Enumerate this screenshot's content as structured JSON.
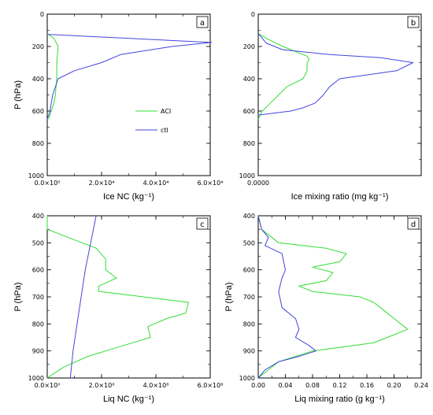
{
  "chart_data": [
    {
      "type": "line",
      "panel": "a",
      "ylabel": "P (hPa)",
      "xlabel": "Ice NC (kg⁻¹)",
      "xlim": [
        0,
        60000
      ],
      "ylim": [
        1000,
        0
      ],
      "xticks": [
        0,
        20000,
        40000,
        60000
      ],
      "xtick_labels": [
        "0.0×10⁰",
        "2.0×10⁴",
        "4.0×10⁴",
        "6.0×10⁴"
      ],
      "yticks": [
        0,
        200,
        400,
        600,
        800,
        1000
      ],
      "ytick_labels": [
        "0",
        "200",
        "400",
        "600",
        "800",
        "1000"
      ],
      "legend": {
        "entries": [
          "ACI",
          "ctl"
        ],
        "placement": "middle-right"
      },
      "series": [
        {
          "name": "ACI",
          "color": "#33dd33",
          "x": [
            0,
            2500,
            4000,
            3500,
            3500,
            3000,
            2500,
            1500,
            500
          ],
          "y": [
            120,
            150,
            200,
            300,
            400,
            500,
            550,
            600,
            650
          ]
        },
        {
          "name": "ctl",
          "color": "#4444dd",
          "x": [
            0,
            60500,
            46000,
            27000,
            20000,
            10000,
            4000,
            2000,
            1000,
            0
          ],
          "y": [
            125,
            175,
            200,
            250,
            300,
            350,
            400,
            500,
            600,
            650
          ]
        }
      ]
    },
    {
      "type": "line",
      "panel": "b",
      "ylabel": "",
      "xlabel": "Ice mixing ratio (mg kg⁻¹)",
      "xlim": [
        0,
        8
      ],
      "ylim": [
        1000,
        0
      ],
      "xticks": [
        0
      ],
      "xtick_labels": [
        "0.0000"
      ],
      "yticks": [
        0,
        200,
        400,
        600,
        800,
        1000
      ],
      "ytick_labels": [
        "0",
        "200",
        "400",
        "600",
        "800",
        "1000"
      ],
      "series": [
        {
          "name": "ACI",
          "color": "#33dd33",
          "x": [
            0,
            0.4,
            1.2,
            2.0,
            2.4,
            2.5,
            2.4,
            2.4,
            2.2,
            1.4,
            1.0,
            0.6,
            0.2,
            0
          ],
          "y": [
            120,
            150,
            200,
            240,
            260,
            280,
            300,
            350,
            400,
            450,
            500,
            550,
            600,
            650
          ]
        },
        {
          "name": "ctl",
          "color": "#4444dd",
          "x": [
            0,
            0.4,
            1.2,
            3.5,
            6.0,
            7.6,
            6.8,
            4.0,
            3.5,
            3.2,
            2.8,
            2.2,
            1.6,
            0
          ],
          "y": [
            120,
            180,
            220,
            250,
            270,
            300,
            350,
            400,
            450,
            500,
            550,
            580,
            600,
            625
          ]
        }
      ]
    },
    {
      "type": "line",
      "panel": "c",
      "ylabel": "P (hPa)",
      "xlabel": "Liq NC (kg⁻¹)",
      "xlim": [
        0,
        600000000
      ],
      "ylim": [
        1000,
        400
      ],
      "xticks": [
        0,
        200000000,
        400000000,
        600000000
      ],
      "xtick_labels": [
        "0.0×10⁰",
        "2.0×10⁸",
        "4.0×10⁸",
        "6.0×10⁸"
      ],
      "yticks": [
        400,
        500,
        600,
        700,
        800,
        900,
        1000
      ],
      "ytick_labels": [
        "400",
        "500",
        "600",
        "700",
        "800",
        "900",
        "1000"
      ],
      "series": [
        {
          "name": "ACI",
          "color": "#33dd33",
          "x": [
            0,
            0,
            180000000,
            215000000,
            215000000,
            255000000,
            190000000,
            190000000,
            520000000,
            510000000,
            440000000,
            370000000,
            380000000,
            280000000,
            150000000,
            60000000,
            30000000,
            0
          ],
          "y": [
            400,
            450,
            520,
            560,
            600,
            630,
            660,
            680,
            720,
            760,
            780,
            810,
            850,
            880,
            920,
            960,
            980,
            1000
          ]
        },
        {
          "name": "ctl",
          "color": "#4444dd",
          "x": [
            180000000,
            160000000,
            140000000,
            125000000,
            110000000,
            95000000,
            85000000
          ],
          "y": [
            400,
            500,
            600,
            700,
            800,
            900,
            1000
          ]
        }
      ]
    },
    {
      "type": "line",
      "panel": "d",
      "ylabel": "P (hPa)",
      "xlabel": "Liq mixing ratio (g kg⁻¹)",
      "xlim": [
        0,
        0.24
      ],
      "ylim": [
        1000,
        400
      ],
      "xticks": [
        0,
        0.04,
        0.08,
        0.12,
        0.16,
        0.2,
        0.24
      ],
      "xtick_labels": [
        "0.00",
        "0.04",
        "0.08",
        "0.12",
        "0.16",
        "0.20",
        "0.24"
      ],
      "yticks": [
        400,
        500,
        600,
        700,
        800,
        900,
        1000
      ],
      "ytick_labels": [
        "400",
        "500",
        "600",
        "700",
        "800",
        "900",
        "1000"
      ],
      "series": [
        {
          "name": "ACI",
          "color": "#33dd33",
          "x": [
            0,
            0.005,
            0.03,
            0.1,
            0.13,
            0.12,
            0.08,
            0.11,
            0.1,
            0.06,
            0.08,
            0.15,
            0.17,
            0.18,
            0.2,
            0.22,
            0.17,
            0.08,
            0.03,
            0.01,
            0
          ],
          "y": [
            400,
            450,
            500,
            520,
            540,
            570,
            590,
            610,
            640,
            660,
            680,
            700,
            720,
            740,
            780,
            820,
            870,
            900,
            940,
            980,
            1000
          ]
        },
        {
          "name": "ctl",
          "color": "#4444dd",
          "x": [
            0,
            0.005,
            0.015,
            0.01,
            0.035,
            0.04,
            0.035,
            0.03,
            0.035,
            0.055,
            0.06,
            0.055,
            0.075,
            0.085,
            0.06,
            0.03,
            0.01,
            0
          ],
          "y": [
            400,
            450,
            480,
            510,
            540,
            600,
            630,
            680,
            740,
            780,
            820,
            850,
            880,
            900,
            920,
            940,
            970,
            1000
          ]
        }
      ]
    }
  ]
}
